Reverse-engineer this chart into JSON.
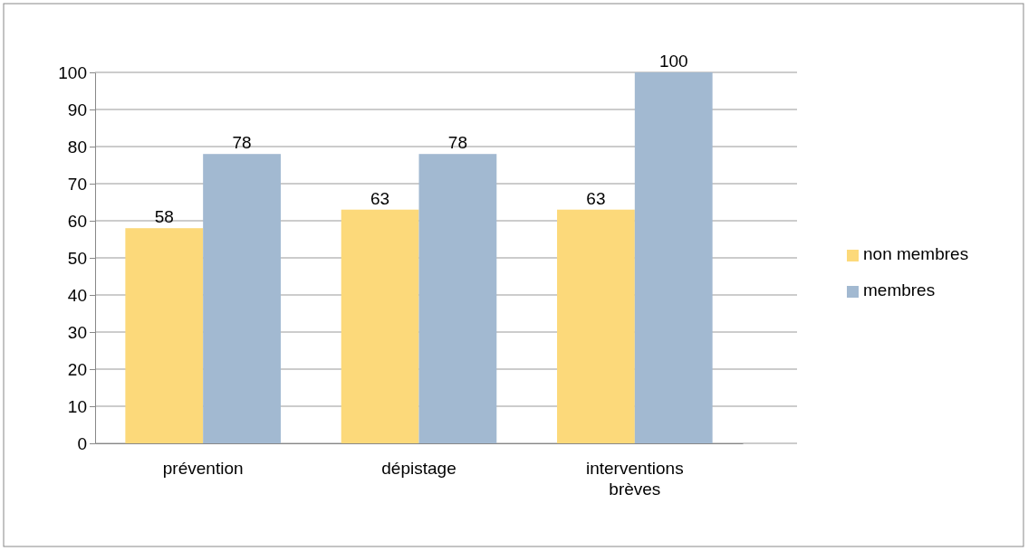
{
  "chart_data": {
    "type": "bar",
    "categories": [
      "prévention",
      "dépistage",
      "interventions brèves"
    ],
    "series": [
      {
        "name": "non membres",
        "color": "#fcd97a",
        "values": [
          58,
          63,
          63
        ]
      },
      {
        "name": "membres",
        "color": "#a2b9d1",
        "values": [
          78,
          78,
          100
        ]
      }
    ],
    "ylim": [
      0,
      100
    ],
    "yticks": [
      0,
      10,
      20,
      30,
      40,
      50,
      60,
      70,
      80,
      90,
      100
    ],
    "grid": "y",
    "legend": "right",
    "data_labels": true
  }
}
